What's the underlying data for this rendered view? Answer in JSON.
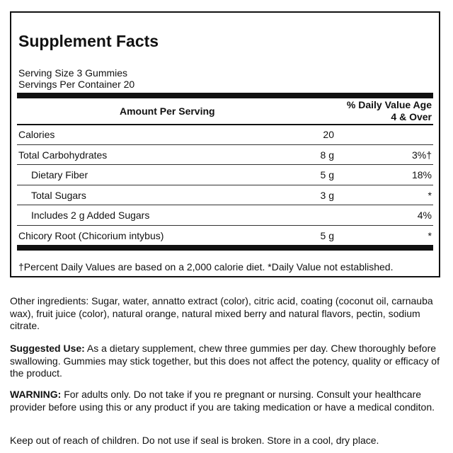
{
  "facts": {
    "title": "Supplement Facts",
    "serving_size": "Serving Size 3 Gummies",
    "servings_per_container": "Servings Per Container 20",
    "header_amount": "Amount Per Serving",
    "header_dv_line1": "% Daily Value Age",
    "header_dv_line2": "4 & Over",
    "rows": [
      {
        "name": "Calories",
        "amount": "20",
        "dv": ""
      },
      {
        "name": "Total Carbohydrates",
        "amount": "8 g",
        "dv": "3%†"
      },
      {
        "name": "Dietary Fiber",
        "amount": "5 g",
        "dv": "18%"
      },
      {
        "name": "Total Sugars",
        "amount": "3 g",
        "dv": "*"
      },
      {
        "name": "Includes 2 g Added Sugars",
        "amount": "",
        "dv": "4%"
      },
      {
        "name": "Chicory Root (Chicorium intybus)",
        "amount": "5 g",
        "dv": "*"
      }
    ],
    "footnote": "†Percent Daily Values are based on a 2,000 calorie diet. *Daily Value not established."
  },
  "other_ingredients": "Other ingredients: Sugar, water, annatto extract (color), citric acid, coating (coconut oil, carnauba wax), fruit juice (color), natural orange, natural mixed berry and natural flavors, pectin, sodium citrate.",
  "suggested_use": {
    "label": "Suggested Use:",
    "text": " As a dietary supplement, chew three gummies per day. Chew thoroughly before swallowing. Gummies may stick together, but this does not affect the potency, quality or efficacy of the product."
  },
  "warning": {
    "label": "WARNING:",
    "text": " For adults only. Do not take if you re pregnant or nursing. Consult your healthcare provider before using this or any product if you are taking medication or have a medical conditon."
  },
  "storage": "Keep out of reach of children. Do not use if seal is broken. Store in a cool, dry place."
}
